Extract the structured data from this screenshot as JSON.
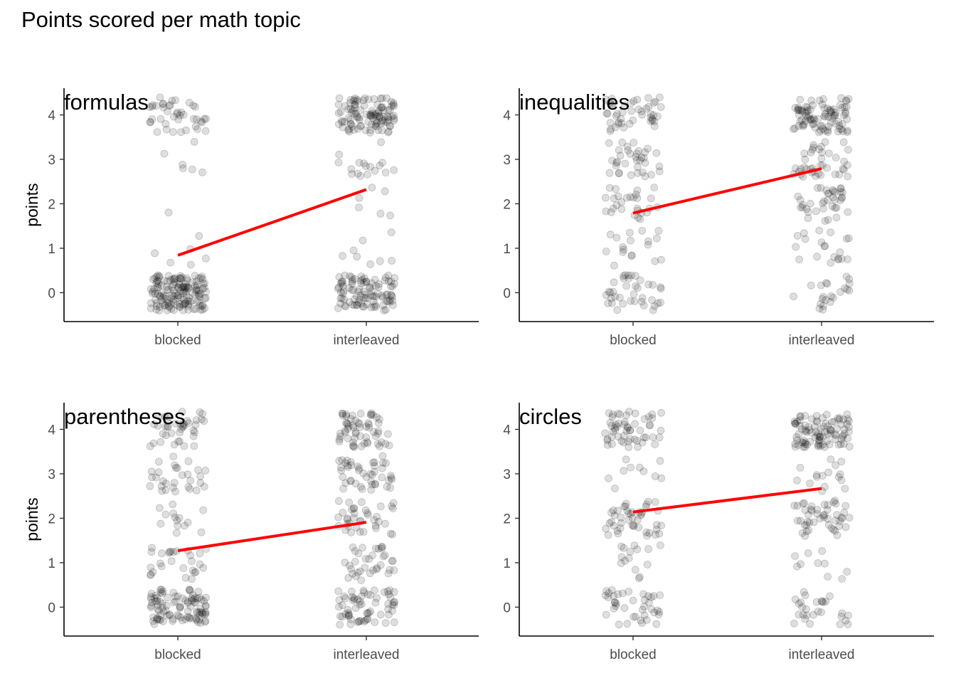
{
  "title": "Points scored per math topic",
  "chart_data": {
    "type": "scatter",
    "title": "Points scored per math topic",
    "ylabel": "points",
    "categories": [
      "blocked",
      "interleaved"
    ],
    "yticks": [
      0,
      1,
      2,
      3,
      4
    ],
    "ylim": [
      -0.65,
      4.6
    ],
    "grid": false,
    "jitter": {
      "x": 0.15,
      "y": 0.4
    },
    "point_color": "#000000",
    "line_color": "#ff0000",
    "facets": [
      {
        "title": "formulas",
        "show_ylabel": true,
        "trend": {
          "blocked": 0.84,
          "interleaved": 2.32
        },
        "counts": {
          "blocked": {
            "0": 150,
            "1": 6,
            "2": 1,
            "3": 6,
            "4": 42
          },
          "interleaved": {
            "0": 100,
            "1": 8,
            "2": 6,
            "3": 17,
            "4": 108
          }
        }
      },
      {
        "title": "inequalities",
        "show_ylabel": false,
        "trend": {
          "blocked": 1.79,
          "interleaved": 2.79
        },
        "counts": {
          "blocked": {
            "0": 38,
            "1": 18,
            "2": 28,
            "3": 35,
            "4": 45
          },
          "interleaved": {
            "0": 22,
            "1": 20,
            "2": 38,
            "3": 40,
            "4": 90
          }
        }
      },
      {
        "title": "parentheses",
        "show_ylabel": true,
        "trend": {
          "blocked": 1.27,
          "interleaved": 1.91
        },
        "counts": {
          "blocked": {
            "0": 100,
            "1": 28,
            "2": 14,
            "3": 30,
            "4": 40
          },
          "interleaved": {
            "0": 65,
            "1": 35,
            "2": 38,
            "3": 45,
            "4": 60
          }
        }
      },
      {
        "title": "circles",
        "show_ylabel": false,
        "trend": {
          "blocked": 2.14,
          "interleaved": 2.67
        },
        "counts": {
          "blocked": {
            "0": 40,
            "1": 15,
            "2": 45,
            "3": 10,
            "4": 55
          },
          "interleaved": {
            "0": 28,
            "1": 10,
            "2": 48,
            "3": 16,
            "4": 95
          }
        }
      }
    ]
  }
}
